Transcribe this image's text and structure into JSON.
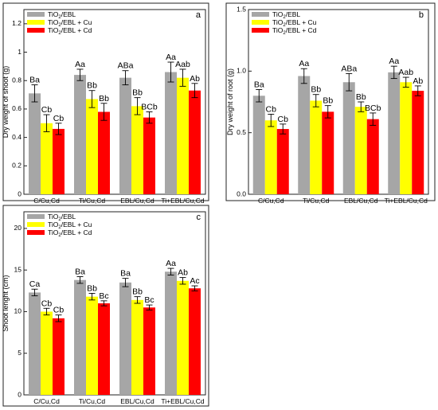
{
  "chart_data": [
    {
      "type": "bar",
      "panel_label": "a",
      "ylabel": "Dry weight of shoot (g)",
      "ylim": [
        0,
        1.3
      ],
      "yticks": [
        0,
        0.2,
        0.4,
        0.6,
        0.8,
        1.0,
        1.2
      ],
      "ytick_labels": [
        "0",
        "0.2",
        "0.4",
        "0.6",
        "0.8",
        "1",
        "1.2"
      ],
      "categories": [
        "C/Cu,Cd",
        "Ti/Cu,Cd",
        "EBL/Cu,Cd",
        "Ti+EBL/Cu,Cd"
      ],
      "legend_position": "top-left",
      "series": [
        {
          "name": "TiO2/EBL",
          "color": "#a6a6a6",
          "values": [
            0.71,
            0.84,
            0.82,
            0.86
          ],
          "errors": [
            0.06,
            0.04,
            0.05,
            0.07
          ],
          "labels": [
            "Ba",
            "Aa",
            "ABa",
            "Aa"
          ]
        },
        {
          "name": "TiO2/EBL + Cu",
          "color": "#ffff00",
          "values": [
            0.5,
            0.67,
            0.62,
            0.82
          ],
          "errors": [
            0.06,
            0.06,
            0.06,
            0.06
          ],
          "labels": [
            "Cb",
            "Bb",
            "Bb",
            "Aab"
          ]
        },
        {
          "name": "TiO2/EBL + Cd",
          "color": "#ff0000",
          "values": [
            0.46,
            0.58,
            0.54,
            0.73
          ],
          "errors": [
            0.04,
            0.06,
            0.04,
            0.05
          ],
          "labels": [
            "Cb",
            "Bb",
            "BCb",
            "Ab"
          ]
        }
      ]
    },
    {
      "type": "bar",
      "panel_label": "b",
      "ylabel": "Dry weight of root (g)",
      "ylim": [
        0,
        1.5
      ],
      "yticks": [
        0,
        0.5,
        1.0,
        1.5
      ],
      "ytick_labels": [
        "0.0",
        "0.5",
        "1.0",
        "1.5"
      ],
      "categories": [
        "C/Cu,Cd",
        "Ti/Cu,Cd",
        "EBL/Cu,Cd",
        "Ti+EBL/Cu,Cd"
      ],
      "legend_position": "top-left",
      "series": [
        {
          "name": "TiO2/EBL",
          "color": "#a6a6a6",
          "values": [
            0.8,
            0.96,
            0.91,
            0.99
          ],
          "errors": [
            0.05,
            0.06,
            0.07,
            0.05
          ],
          "labels": [
            "Ba",
            "Aa",
            "ABa",
            "Aa"
          ]
        },
        {
          "name": "TiO2/EBL + Cu",
          "color": "#ffff00",
          "values": [
            0.6,
            0.76,
            0.71,
            0.91
          ],
          "errors": [
            0.05,
            0.05,
            0.04,
            0.04
          ],
          "labels": [
            "Cb",
            "Bb",
            "Bb",
            "Aab"
          ]
        },
        {
          "name": "TiO2/EBL + Cd",
          "color": "#ff0000",
          "values": [
            0.53,
            0.67,
            0.61,
            0.84
          ],
          "errors": [
            0.04,
            0.05,
            0.05,
            0.04
          ],
          "labels": [
            "Cb",
            "Bb",
            "BCb",
            "Ab"
          ]
        }
      ]
    },
    {
      "type": "bar",
      "panel_label": "c",
      "ylabel": "Shoot lenght (cm)",
      "ylim": [
        0,
        22
      ],
      "yticks": [
        0,
        5,
        10,
        15,
        20
      ],
      "ytick_labels": [
        "0",
        "5",
        "10",
        "15",
        "20"
      ],
      "categories": [
        "C/Cu,Cd",
        "Ti/Cu,Cd",
        "EBL/Cu,Cd",
        "Ti+EBL/Cu,Cd"
      ],
      "legend_position": "top-left",
      "series": [
        {
          "name": "TiO2/EBL",
          "color": "#a6a6a6",
          "values": [
            12.3,
            13.8,
            13.5,
            14.8
          ],
          "errors": [
            0.4,
            0.4,
            0.5,
            0.4
          ],
          "labels": [
            "Ca",
            "Ba",
            "Ba",
            "Aa"
          ]
        },
        {
          "name": "TiO2/EBL + Cu",
          "color": "#ffff00",
          "values": [
            10.0,
            11.8,
            11.4,
            13.7
          ],
          "errors": [
            0.4,
            0.4,
            0.4,
            0.4
          ],
          "labels": [
            "Cb",
            "Bb",
            "Bb",
            "Ab"
          ]
        },
        {
          "name": "TiO2/EBL + Cd",
          "color": "#ff0000",
          "values": [
            9.2,
            11.0,
            10.5,
            12.8
          ],
          "errors": [
            0.4,
            0.3,
            0.3,
            0.3
          ],
          "labels": [
            "Cb",
            "Bc",
            "Bc",
            "Ac"
          ]
        }
      ]
    }
  ]
}
